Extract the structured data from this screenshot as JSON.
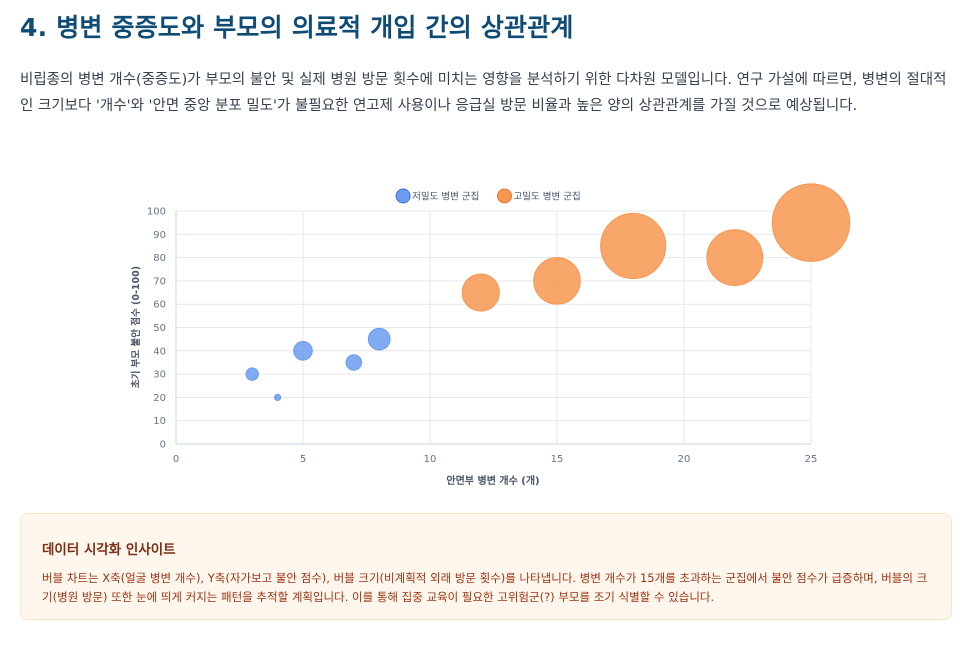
{
  "header": {
    "title": "4. 병변 중증도와 부모의 의료적 개입 간의 상관관계"
  },
  "intro": {
    "text": "비립종의 병변 개수(중증도)가 부모의 불안 및 실제 병원 방문 횟수에 미치는 영향을 분석하기 위한 다차원 모델입니다. 연구 가설에 따르면, 병변의 절대적인 크기보다 '개수'와 '안면 중앙 분포 밀도'가 불필요한 연고제 사용이나 응급실 방문 비율과 높은 양의 상관관계를 가질 것으로 예상됩니다."
  },
  "chart_data": {
    "type": "scatter",
    "subtype": "bubble",
    "xlabel": "안면부 병변 개수 (개)",
    "ylabel": "초기 부모 불안 점수 (0-100)",
    "xlim": [
      0,
      25
    ],
    "ylim": [
      0,
      100
    ],
    "xticks": [
      0,
      5,
      10,
      15,
      20,
      25
    ],
    "yticks": [
      0,
      10,
      20,
      30,
      40,
      50,
      60,
      70,
      80,
      90,
      100
    ],
    "grid": true,
    "legend_position": "top-center",
    "series": [
      {
        "name": "저밀도 병변 군집",
        "color": "#6b9cf0",
        "points": [
          {
            "x": 3,
            "y": 30,
            "r": 2
          },
          {
            "x": 4,
            "y": 20,
            "r": 1
          },
          {
            "x": 5,
            "y": 40,
            "r": 3
          },
          {
            "x": 7,
            "y": 35,
            "r": 2.5
          },
          {
            "x": 8,
            "y": 45,
            "r": 3.5
          }
        ]
      },
      {
        "name": "고밀도 병변 군집",
        "color": "#f79650",
        "points": [
          {
            "x": 12,
            "y": 65,
            "r": 6
          },
          {
            "x": 15,
            "y": 70,
            "r": 7.5
          },
          {
            "x": 18,
            "y": 85,
            "r": 10.5
          },
          {
            "x": 22,
            "y": 80,
            "r": 9
          },
          {
            "x": 25,
            "y": 95,
            "r": 12.5
          }
        ]
      }
    ]
  },
  "insight": {
    "title": "데이터 시각화 인사이트",
    "text": "버블 차트는 X축(얼굴 병변 개수), Y축(자가보고 불안 점수), 버블 크기(비계획적 외래 방문 횟수)를 나타냅니다. 병변 개수가 15개를 초과하는 군집에서 불안 점수가 급증하며, 버블의 크기(병원 방문) 또한 눈에 띄게 커지는 패턴을 추적할 계획입니다. 이를 통해 집중 교육이 필요한 고위험군(?) 부모를 조기 식별할 수 있습니다."
  }
}
